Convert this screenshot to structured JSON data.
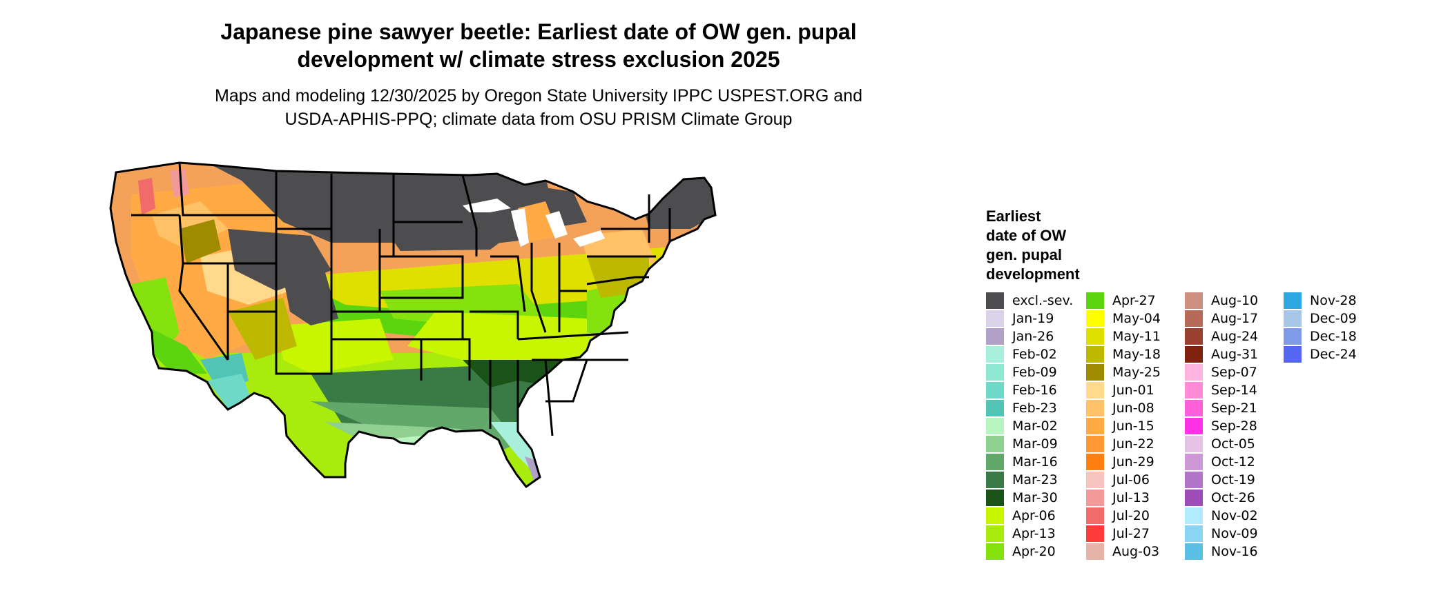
{
  "title_lines": [
    "Japanese pine sawyer beetle: Earliest date of OW gen. pupal",
    "development w/ climate stress exclusion 2025"
  ],
  "subtitle_lines": [
    "Maps and modeling 12/30/2025 by Oregon State University IPPC USPEST.ORG and",
    "USDA-APHIS-PPQ; climate data from OSU PRISM Climate Group"
  ],
  "legend": {
    "title_lines": [
      "Earliest",
      "date of OW",
      "gen. pupal",
      "development"
    ],
    "columns": [
      [
        {
          "label": "excl.-sev.",
          "color": "#4d4d4f"
        },
        {
          "label": "Jan-19",
          "color": "#d9d2e9"
        },
        {
          "label": "Jan-26",
          "color": "#b2a1c7"
        },
        {
          "label": "Feb-02",
          "color": "#a8f0dc"
        },
        {
          "label": "Feb-09",
          "color": "#8ee8d2"
        },
        {
          "label": "Feb-16",
          "color": "#6dd9c6"
        },
        {
          "label": "Feb-23",
          "color": "#52c4b6"
        },
        {
          "label": "Mar-02",
          "color": "#b9f5c1"
        },
        {
          "label": "Mar-09",
          "color": "#8fcf8f"
        },
        {
          "label": "Mar-16",
          "color": "#63a86b"
        },
        {
          "label": "Mar-23",
          "color": "#3a7a46"
        },
        {
          "label": "Mar-30",
          "color": "#1a5218"
        },
        {
          "label": "Apr-06",
          "color": "#c8f500"
        },
        {
          "label": "Apr-13",
          "color": "#a8eb0c"
        },
        {
          "label": "Apr-20",
          "color": "#86e20e"
        }
      ],
      [
        {
          "label": "Apr-27",
          "color": "#5cd40e"
        },
        {
          "label": "May-04",
          "color": "#ffff00"
        },
        {
          "label": "May-11",
          "color": "#e0e000"
        },
        {
          "label": "May-18",
          "color": "#bdb800"
        },
        {
          "label": "May-25",
          "color": "#9e8b00"
        },
        {
          "label": "Jun-01",
          "color": "#ffd98c"
        },
        {
          "label": "Jun-08",
          "color": "#ffc266"
        },
        {
          "label": "Jun-15",
          "color": "#ffaa44"
        },
        {
          "label": "Jun-22",
          "color": "#ff9933"
        },
        {
          "label": "Jun-29",
          "color": "#ff8011"
        },
        {
          "label": "Jul-06",
          "color": "#f7c4c0"
        },
        {
          "label": "Jul-13",
          "color": "#f29a9a"
        },
        {
          "label": "Jul-20",
          "color": "#f26b6b"
        },
        {
          "label": "Jul-27",
          "color": "#ff3a3a"
        },
        {
          "label": "Aug-03",
          "color": "#e6b3a8"
        }
      ],
      [
        {
          "label": "Aug-10",
          "color": "#cc8f80"
        },
        {
          "label": "Aug-17",
          "color": "#b86a5a"
        },
        {
          "label": "Aug-24",
          "color": "#9a4030"
        },
        {
          "label": "Aug-31",
          "color": "#7f2310"
        },
        {
          "label": "Sep-07",
          "color": "#ffb3e0"
        },
        {
          "label": "Sep-14",
          "color": "#ff8ad6"
        },
        {
          "label": "Sep-21",
          "color": "#ff5fd8"
        },
        {
          "label": "Sep-28",
          "color": "#ff33e6"
        },
        {
          "label": "Oct-05",
          "color": "#e6c2e6"
        },
        {
          "label": "Oct-12",
          "color": "#cc99d6"
        },
        {
          "label": "Oct-19",
          "color": "#b375c7"
        },
        {
          "label": "Oct-26",
          "color": "#9e4cb8"
        },
        {
          "label": "Nov-02",
          "color": "#b3ecff"
        },
        {
          "label": "Nov-09",
          "color": "#8ad6f2"
        },
        {
          "label": "Nov-16",
          "color": "#5cbfe6"
        }
      ],
      [
        {
          "label": "Nov-28",
          "color": "#2da8e0"
        },
        {
          "label": "Dec-09",
          "color": "#a8c6e6"
        },
        {
          "label": "Dec-18",
          "color": "#7f9ae8"
        },
        {
          "label": "Dec-24",
          "color": "#5566f2"
        }
      ]
    ]
  }
}
